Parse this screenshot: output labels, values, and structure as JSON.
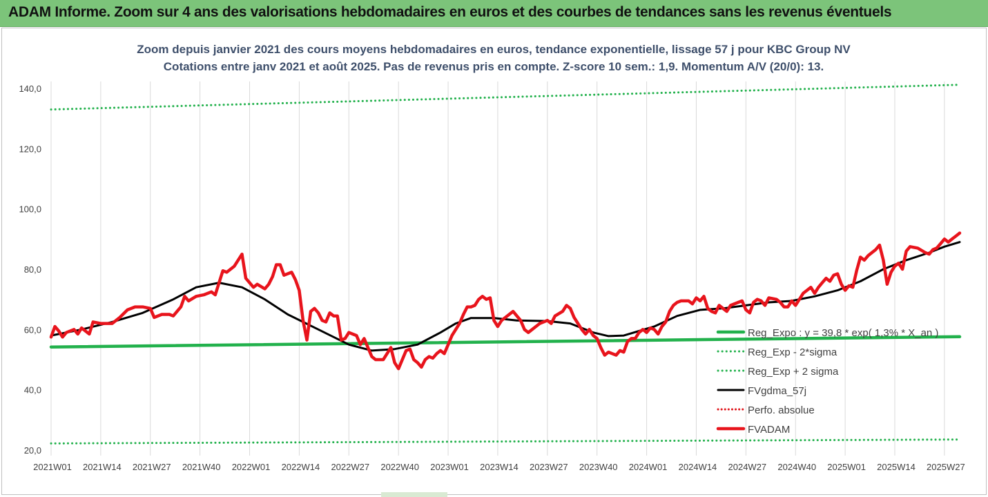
{
  "banner": {
    "title": "ADAM Informe. Zoom sur 4 ans des valorisations hebdomadaires en euros et des courbes de tendances sans les revenus éventuels"
  },
  "colors": {
    "banner_bg": "#7cc47a",
    "reg_expo": "#22b14c",
    "sigma": "#22b14c",
    "fvgdma": "#000000",
    "perfo": "#e0141a",
    "fvadam": "#e8141c",
    "title_text": "#3e4f6b"
  },
  "chart_data": {
    "type": "line",
    "title": "Zoom depuis janvier 2021 des cours moyens hebdomadaires en euros, tendance exponentielle, lissage 57 j pour KBC Group NV",
    "subtitle": "Cotations entre janv 2021 et août 2025. Pas de revenus pris en compte. Z-score 10 sem.: 1,9. Momentum A/V (20/0): 13.",
    "xlabel": "",
    "ylabel": "",
    "ylim": [
      20,
      150
    ],
    "yticks": [
      20,
      40,
      60,
      80,
      100,
      120,
      140
    ],
    "ytick_labels": [
      "20,0",
      "40,0",
      "60,0",
      "80,0",
      "100,0",
      "120,0",
      "140,0"
    ],
    "xlim": [
      0,
      238
    ],
    "x_ticks": [
      {
        "week_index": 0,
        "label": "2021W01"
      },
      {
        "week_index": 13,
        "label": "2021W14"
      },
      {
        "week_index": 26,
        "label": "2021W27"
      },
      {
        "week_index": 39,
        "label": "2021W40"
      },
      {
        "week_index": 52,
        "label": "2022W01"
      },
      {
        "week_index": 65,
        "label": "2022W14"
      },
      {
        "week_index": 78,
        "label": "2022W27"
      },
      {
        "week_index": 91,
        "label": "2022W40"
      },
      {
        "week_index": 104,
        "label": "2023W01"
      },
      {
        "week_index": 117,
        "label": "2023W14"
      },
      {
        "week_index": 130,
        "label": "2023W27"
      },
      {
        "week_index": 143,
        "label": "2023W40"
      },
      {
        "week_index": 156,
        "label": "2024W01"
      },
      {
        "week_index": 169,
        "label": "2024W14"
      },
      {
        "week_index": 182,
        "label": "2024W27"
      },
      {
        "week_index": 195,
        "label": "2024W40"
      },
      {
        "week_index": 208,
        "label": "2025W01"
      },
      {
        "week_index": 221,
        "label": "2025W14"
      },
      {
        "week_index": 234,
        "label": "2025W27"
      }
    ],
    "grid": {
      "vertical": true,
      "horizontal": false
    },
    "legend_position": "bottom-right",
    "series": [
      {
        "name": "Reg_Expo : y = 39,8 * exp( 1,3% * X_an )",
        "style": "solid-thick",
        "points": [
          [
            0,
            54.2
          ],
          [
            238,
            57.6
          ]
        ]
      },
      {
        "name": "Reg_Exp - 2*sigma",
        "style": "dotted",
        "points": [
          [
            0,
            22.2
          ],
          [
            238,
            23.5
          ]
        ]
      },
      {
        "name": "Reg_Exp + 2 sigma",
        "style": "dotted",
        "points": [
          [
            0,
            133.0
          ],
          [
            238,
            141.2
          ]
        ]
      },
      {
        "name": "FVgdma_57j",
        "style": "solid",
        "points": [
          [
            0,
            58
          ],
          [
            8,
            60
          ],
          [
            16,
            62.5
          ],
          [
            24,
            65.5
          ],
          [
            32,
            70
          ],
          [
            38,
            74
          ],
          [
            44,
            75.5
          ],
          [
            50,
            74
          ],
          [
            56,
            70
          ],
          [
            62,
            65
          ],
          [
            70,
            60
          ],
          [
            78,
            55
          ],
          [
            84,
            53
          ],
          [
            90,
            53.5
          ],
          [
            96,
            55
          ],
          [
            102,
            59
          ],
          [
            106,
            62
          ],
          [
            110,
            63.8
          ],
          [
            116,
            63.8
          ],
          [
            122,
            63
          ],
          [
            130,
            62.8
          ],
          [
            136,
            62
          ],
          [
            142,
            59
          ],
          [
            146,
            57.8
          ],
          [
            150,
            58
          ],
          [
            158,
            61
          ],
          [
            164,
            64.5
          ],
          [
            170,
            66.5
          ],
          [
            176,
            67
          ],
          [
            182,
            68
          ],
          [
            188,
            69
          ],
          [
            194,
            69.5
          ],
          [
            200,
            71
          ],
          [
            206,
            73
          ],
          [
            212,
            76
          ],
          [
            218,
            80
          ],
          [
            224,
            83
          ],
          [
            230,
            85.5
          ],
          [
            234,
            87.5
          ],
          [
            238,
            89
          ]
        ]
      },
      {
        "name": "Perfo. absolue",
        "style": "dotted",
        "points": []
      },
      {
        "name": "FVADAM",
        "style": "solid-thick",
        "points": [
          [
            0,
            57.5
          ],
          [
            1,
            61
          ],
          [
            2,
            59.5
          ],
          [
            3,
            57.5
          ],
          [
            4,
            59
          ],
          [
            6,
            60
          ],
          [
            7,
            58.5
          ],
          [
            8,
            60.5
          ],
          [
            10,
            58.5
          ],
          [
            11,
            62.5
          ],
          [
            13,
            62
          ],
          [
            16,
            62
          ],
          [
            18,
            64
          ],
          [
            20,
            66.5
          ],
          [
            22,
            67.5
          ],
          [
            24,
            67.5
          ],
          [
            26,
            67
          ],
          [
            27,
            64
          ],
          [
            29,
            65
          ],
          [
            31,
            65
          ],
          [
            32,
            64.5
          ],
          [
            34,
            67.5
          ],
          [
            35,
            71
          ],
          [
            36,
            69.5
          ],
          [
            38,
            71
          ],
          [
            40,
            71.5
          ],
          [
            42,
            72.5
          ],
          [
            43,
            71.5
          ],
          [
            44,
            75.5
          ],
          [
            45,
            79.5
          ],
          [
            46,
            79
          ],
          [
            48,
            81
          ],
          [
            49,
            83
          ],
          [
            50,
            85
          ],
          [
            51,
            77
          ],
          [
            52,
            75.5
          ],
          [
            53,
            74
          ],
          [
            54,
            75
          ],
          [
            56,
            73.5
          ],
          [
            57,
            75
          ],
          [
            58,
            77.5
          ],
          [
            59,
            81.5
          ],
          [
            60,
            81.5
          ],
          [
            61,
            78
          ],
          [
            63,
            79
          ],
          [
            64,
            76.5
          ],
          [
            65,
            73
          ],
          [
            66,
            63
          ],
          [
            67,
            56.5
          ],
          [
            68,
            66
          ],
          [
            69,
            67
          ],
          [
            70,
            65.5
          ],
          [
            71,
            63
          ],
          [
            72,
            62.5
          ],
          [
            73,
            65.5
          ],
          [
            74,
            64.5
          ],
          [
            75,
            64.5
          ],
          [
            76,
            56.5
          ],
          [
            77,
            57
          ],
          [
            78,
            59
          ],
          [
            80,
            58
          ],
          [
            81,
            55
          ],
          [
            82,
            57
          ],
          [
            83,
            54
          ],
          [
            84,
            51
          ],
          [
            85,
            50
          ],
          [
            87,
            50
          ],
          [
            88,
            52
          ],
          [
            89,
            54
          ],
          [
            90,
            49
          ],
          [
            91,
            47
          ],
          [
            92,
            50
          ],
          [
            93,
            53
          ],
          [
            94,
            53.5
          ],
          [
            95,
            50
          ],
          [
            96,
            49
          ],
          [
            97,
            47.5
          ],
          [
            98,
            50
          ],
          [
            99,
            51
          ],
          [
            100,
            50.5
          ],
          [
            101,
            52
          ],
          [
            102,
            53
          ],
          [
            103,
            52
          ],
          [
            104,
            55
          ],
          [
            105,
            58
          ],
          [
            106,
            60
          ],
          [
            107,
            62
          ],
          [
            108,
            65
          ],
          [
            109,
            67.5
          ],
          [
            110,
            67.5
          ],
          [
            111,
            68
          ],
          [
            112,
            70
          ],
          [
            113,
            71
          ],
          [
            114,
            70
          ],
          [
            115,
            70.5
          ],
          [
            116,
            63
          ],
          [
            117,
            61
          ],
          [
            118,
            63
          ],
          [
            119,
            64
          ],
          [
            120,
            65
          ],
          [
            121,
            66
          ],
          [
            122,
            64.5
          ],
          [
            123,
            63
          ],
          [
            124,
            60
          ],
          [
            125,
            59
          ],
          [
            127,
            61
          ],
          [
            128,
            62
          ],
          [
            130,
            63
          ],
          [
            131,
            62
          ],
          [
            132,
            64.5
          ],
          [
            134,
            66
          ],
          [
            135,
            68
          ],
          [
            136,
            67
          ],
          [
            137,
            64
          ],
          [
            138,
            62
          ],
          [
            139,
            60
          ],
          [
            140,
            58.5
          ],
          [
            141,
            60
          ],
          [
            142,
            58
          ],
          [
            143,
            57
          ],
          [
            144,
            54
          ],
          [
            145,
            51.5
          ],
          [
            146,
            52.5
          ],
          [
            147,
            52
          ],
          [
            148,
            51.5
          ],
          [
            149,
            53
          ],
          [
            150,
            52.5
          ],
          [
            151,
            56
          ],
          [
            152,
            57
          ],
          [
            153,
            57
          ],
          [
            154,
            59
          ],
          [
            155,
            60
          ],
          [
            156,
            59
          ],
          [
            157,
            60.5
          ],
          [
            158,
            60
          ],
          [
            159,
            58.5
          ],
          [
            160,
            61
          ],
          [
            161,
            62.5
          ],
          [
            162,
            66
          ],
          [
            163,
            68
          ],
          [
            164,
            69
          ],
          [
            165,
            69.5
          ],
          [
            167,
            69.5
          ],
          [
            168,
            68.5
          ],
          [
            169,
            70.5
          ],
          [
            170,
            69.5
          ],
          [
            171,
            71
          ],
          [
            172,
            67
          ],
          [
            173,
            66
          ],
          [
            174,
            65.5
          ],
          [
            175,
            68
          ],
          [
            176,
            67
          ],
          [
            177,
            66
          ],
          [
            178,
            68
          ],
          [
            180,
            69
          ],
          [
            181,
            69.5
          ],
          [
            182,
            66.5
          ],
          [
            183,
            65.5
          ],
          [
            184,
            69
          ],
          [
            185,
            70
          ],
          [
            186,
            69.5
          ],
          [
            187,
            68
          ],
          [
            188,
            70.5
          ],
          [
            190,
            70
          ],
          [
            191,
            69
          ],
          [
            192,
            67.5
          ],
          [
            193,
            67.5
          ],
          [
            194,
            69.5
          ],
          [
            195,
            68
          ],
          [
            196,
            70
          ],
          [
            197,
            72
          ],
          [
            198,
            73
          ],
          [
            199,
            74
          ],
          [
            200,
            72
          ],
          [
            201,
            74
          ],
          [
            202,
            75.5
          ],
          [
            203,
            77
          ],
          [
            204,
            76
          ],
          [
            205,
            78
          ],
          [
            206,
            78.5
          ],
          [
            207,
            75
          ],
          [
            208,
            73
          ],
          [
            209,
            74.5
          ],
          [
            210,
            74
          ],
          [
            211,
            79.5
          ],
          [
            212,
            84
          ],
          [
            213,
            83
          ],
          [
            214,
            84.5
          ],
          [
            215,
            85.5
          ],
          [
            216,
            86.5
          ],
          [
            217,
            88
          ],
          [
            218,
            83
          ],
          [
            219,
            75
          ],
          [
            220,
            79
          ],
          [
            221,
            81
          ],
          [
            222,
            82
          ],
          [
            223,
            80
          ],
          [
            224,
            86
          ],
          [
            225,
            87.5
          ],
          [
            227,
            87
          ],
          [
            229,
            85.5
          ],
          [
            230,
            85
          ],
          [
            231,
            86.5
          ],
          [
            232,
            87
          ],
          [
            233,
            88.5
          ],
          [
            234,
            90
          ],
          [
            235,
            89
          ],
          [
            236,
            90
          ],
          [
            237,
            91
          ],
          [
            238,
            92
          ]
        ]
      }
    ]
  }
}
